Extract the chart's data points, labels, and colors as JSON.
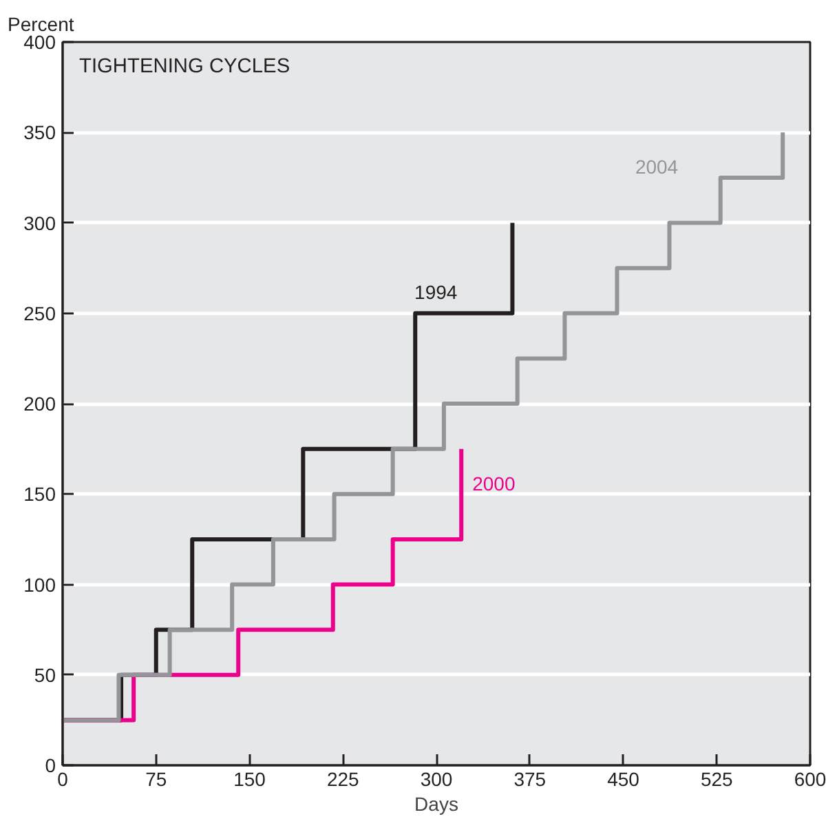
{
  "chart_data": {
    "type": "step",
    "title": "TIGHTENING CYCLES",
    "xlabel": "Days",
    "ylabel": "Percent",
    "xlim": [
      0,
      600
    ],
    "xticks": [
      0,
      75,
      150,
      225,
      300,
      375,
      450,
      525,
      600
    ],
    "ylim": [
      0,
      400
    ],
    "yticks": [
      0,
      50,
      100,
      150,
      200,
      250,
      300,
      350,
      400
    ],
    "grid": "y",
    "series": [
      {
        "name": "1994",
        "color": "#231f20",
        "x": [
          0,
          47,
          75,
          104,
          193,
          283,
          361
        ],
        "values": [
          25,
          50,
          75,
          125,
          175,
          250,
          300
        ]
      },
      {
        "name": "2000",
        "color": "#ec008c",
        "x": [
          0,
          57,
          141,
          217,
          265,
          320
        ],
        "values": [
          25,
          50,
          75,
          100,
          125,
          175
        ]
      },
      {
        "name": "2004",
        "color": "#939598",
        "x": [
          0,
          45,
          86,
          136,
          169,
          218,
          265,
          306,
          365,
          403,
          445,
          487,
          528,
          578
        ],
        "values": [
          25,
          50,
          75,
          100,
          125,
          150,
          175,
          200,
          225,
          250,
          275,
          300,
          325,
          350
        ]
      }
    ]
  }
}
